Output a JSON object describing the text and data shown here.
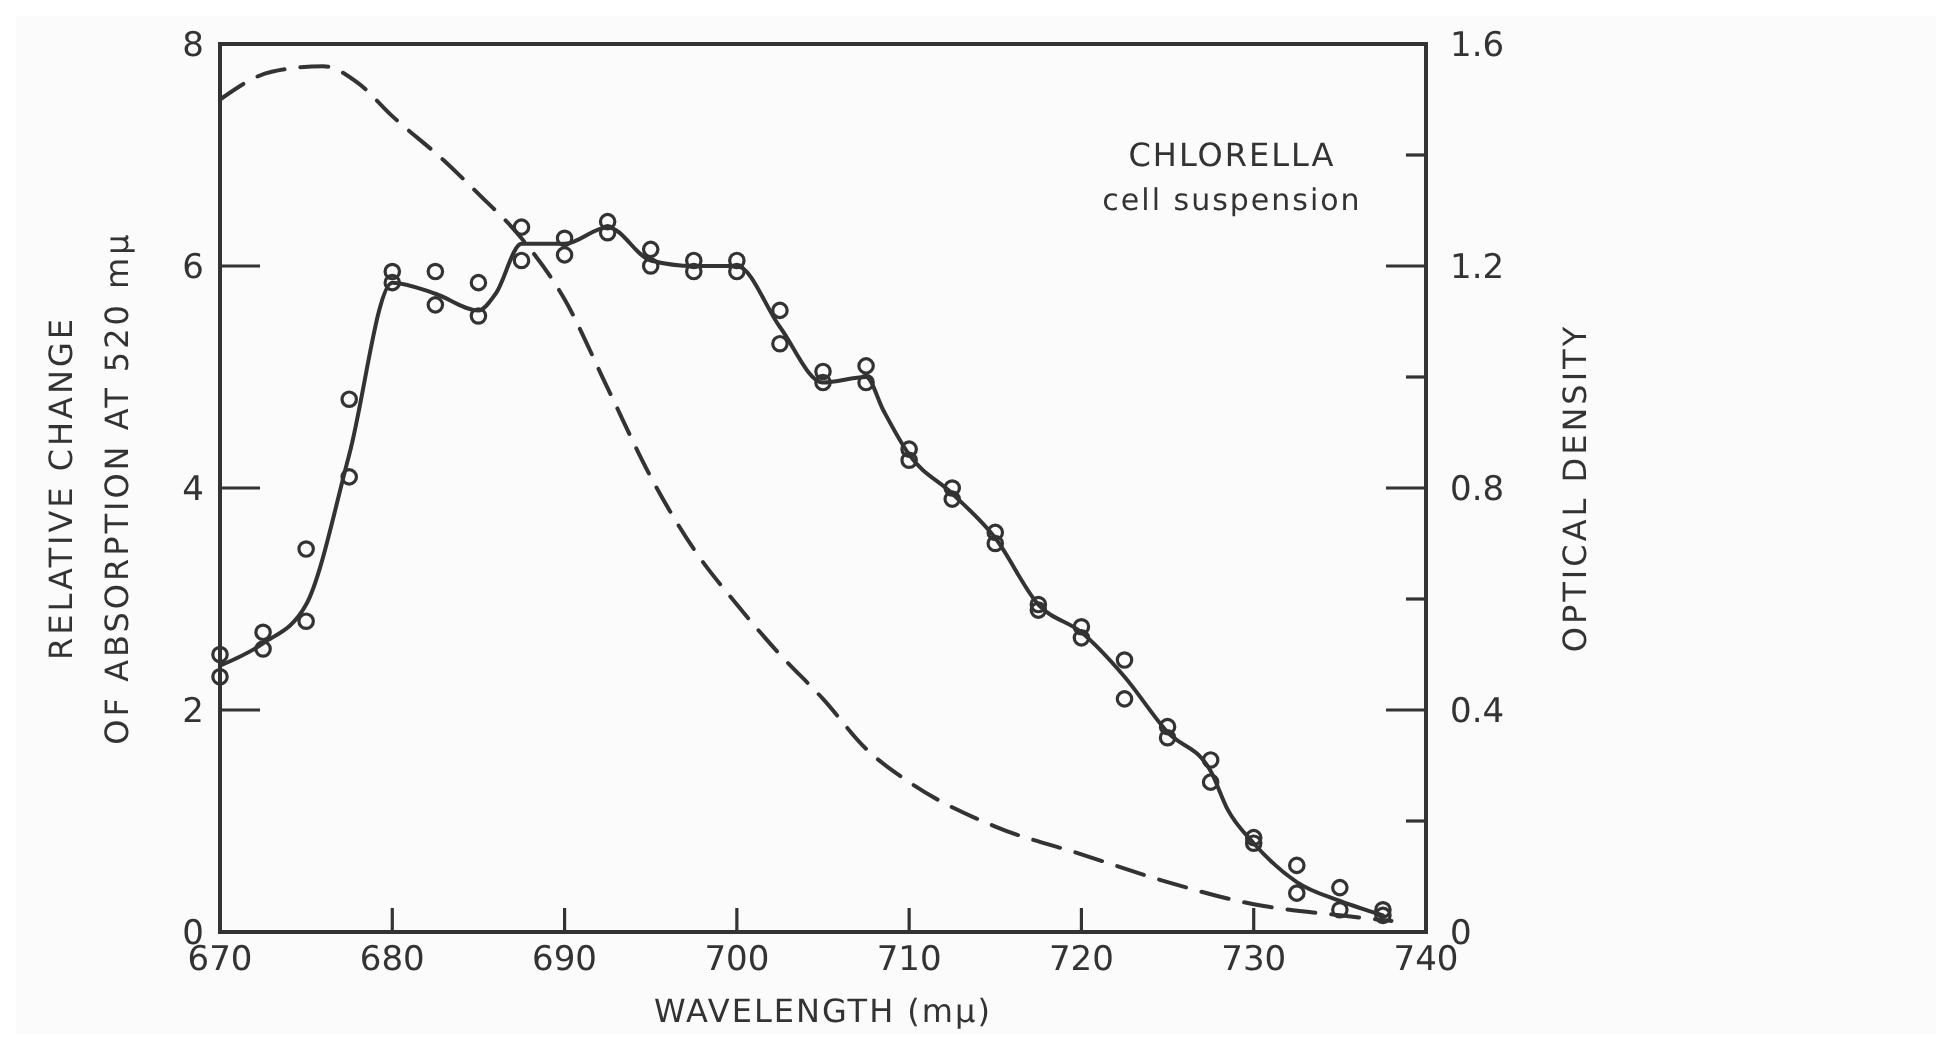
{
  "chart_data": {
    "type": "line",
    "xlabel": "WAVELENGTH (mμ)",
    "ylabel": "RELATIVE CHANGE\nOF ABSORPTION AT 520 mμ",
    "y2label": "OPTICAL DENSITY",
    "annotations": [
      "CHLORELLA",
      "cell suspension"
    ],
    "xlim": [
      670,
      740
    ],
    "xticks": [
      670,
      680,
      690,
      700,
      710,
      720,
      730,
      740
    ],
    "ylim": [
      0,
      8
    ],
    "yticks": [
      0,
      2,
      4,
      6,
      8
    ],
    "y2lim": [
      0,
      1.6
    ],
    "y2ticks": [
      0,
      {
        "value": 0.2,
        "label": null
      },
      0.4,
      {
        "value": 0.6,
        "label": null
      },
      0.8,
      {
        "value": 1.0,
        "label": null
      },
      1.2,
      {
        "value": 1.4,
        "label": null
      },
      1.6
    ],
    "grid": false,
    "series": [
      {
        "type": "scatter",
        "marker": "circle",
        "color": "#333333",
        "x": [
          670,
          670,
          672.5,
          672.5,
          675,
          675,
          677.5,
          677.5,
          680,
          680,
          682.5,
          682.5,
          685,
          685,
          687.5,
          687.5,
          690,
          690,
          692.5,
          692.5,
          695,
          695,
          697.5,
          697.5,
          700,
          700,
          702.5,
          702.5,
          705,
          705,
          707.5,
          707.5,
          710,
          710,
          712.5,
          712.5,
          715,
          715,
          717.5,
          717.5,
          720,
          720,
          722.5,
          722.5,
          725,
          725,
          727.5,
          727.5,
          730,
          730,
          732.5,
          732.5,
          735,
          735,
          737.5,
          737.5
        ],
        "values": [
          2.5,
          2.3,
          2.7,
          2.55,
          3.45,
          2.8,
          4.8,
          4.1,
          5.95,
          5.85,
          5.95,
          5.65,
          5.85,
          5.55,
          6.35,
          6.05,
          6.25,
          6.1,
          6.4,
          6.3,
          6.15,
          6.0,
          6.05,
          5.95,
          6.05,
          5.95,
          5.6,
          5.3,
          5.05,
          4.95,
          5.1,
          4.95,
          4.35,
          4.25,
          4.0,
          3.9,
          3.6,
          3.5,
          2.95,
          2.9,
          2.75,
          2.65,
          2.45,
          2.1,
          1.85,
          1.75,
          1.55,
          1.35,
          0.85,
          0.8,
          0.6,
          0.35,
          0.4,
          0.2,
          0.2,
          0.15
        ]
      },
      {
        "type": "line",
        "marker": "none",
        "line_style": "solid",
        "color": "#333333",
        "x": [
          670,
          672.5,
          675,
          677.5,
          680,
          682.5,
          685,
          686,
          687.5,
          690,
          692.5,
          695,
          697.5,
          700,
          702.5,
          705,
          707.5,
          708.5,
          710,
          712.5,
          715,
          717.5,
          720,
          722.5,
          725,
          727.5,
          728.5,
          730,
          732.5,
          735,
          737.5
        ],
        "values": [
          2.4,
          2.6,
          2.95,
          4.3,
          5.85,
          5.75,
          5.6,
          5.75,
          6.2,
          6.2,
          6.35,
          6.05,
          6.0,
          6.0,
          5.45,
          4.95,
          5.0,
          4.7,
          4.3,
          3.95,
          3.55,
          2.95,
          2.7,
          2.3,
          1.8,
          1.45,
          1.1,
          0.8,
          0.45,
          0.28,
          0.15
        ]
      },
      {
        "type": "line",
        "axis": "y2",
        "marker": "none",
        "line_style": "dashed",
        "color": "#333333",
        "x": [
          670,
          673,
          676,
          678,
          680,
          683,
          685,
          687.5,
          690,
          692.5,
          695,
          697.5,
          700,
          702.5,
          705,
          707.5,
          710,
          715,
          720,
          725,
          730,
          735,
          738
        ],
        "values": [
          1.5,
          1.55,
          1.56,
          1.53,
          1.47,
          1.39,
          1.33,
          1.25,
          1.14,
          0.98,
          0.82,
          0.69,
          0.59,
          0.5,
          0.42,
          0.33,
          0.27,
          0.19,
          0.14,
          0.09,
          0.05,
          0.03,
          0.02
        ]
      }
    ]
  }
}
